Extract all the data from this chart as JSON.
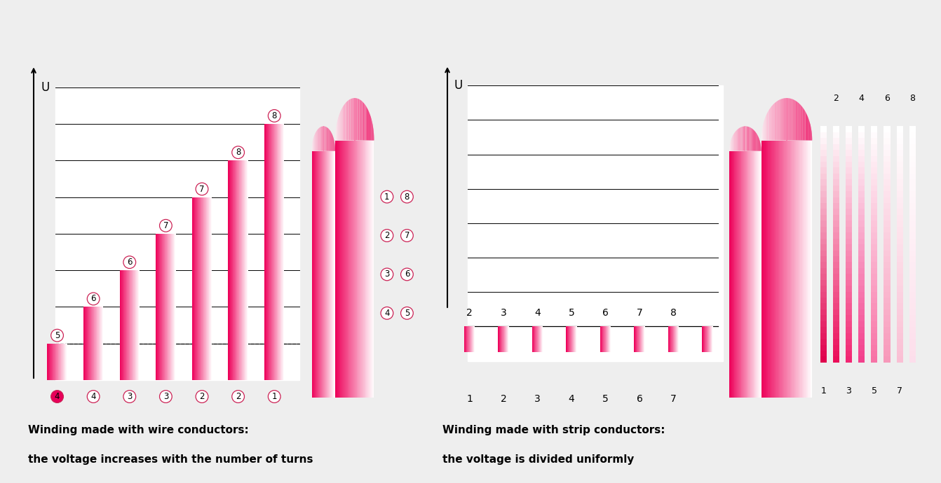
{
  "bg_color": "#eeeeee",
  "left_caption1": "Winding made with wire conductors:",
  "left_caption2": "the voltage increases with the number of turns",
  "right_caption1": "Winding made with strip conductors:",
  "right_caption2": "the voltage is divided uniformly",
  "left_bar_heights": [
    1,
    2,
    3,
    4,
    5,
    6,
    7
  ],
  "left_bottom_labels": [
    "4",
    "4",
    "3",
    "3",
    "2",
    "2",
    "1"
  ],
  "left_top_labels": [
    "5",
    "6",
    "6",
    "7",
    "7",
    "8",
    "8"
  ],
  "right_top_labels": [
    "2",
    "3",
    "4",
    "5",
    "6",
    "7",
    "8"
  ],
  "right_bot_labels": [
    "1",
    "2",
    "3",
    "4",
    "5",
    "6",
    "7"
  ],
  "coil_left_labels": [
    "1",
    "2",
    "3",
    "4"
  ],
  "coil_right_labels": [
    "8",
    "7",
    "6",
    "5"
  ],
  "strip_top_labels": [
    "2",
    "4",
    "6",
    "8"
  ],
  "strip_bot_labels": [
    "1",
    "3",
    "5",
    "7"
  ],
  "num_hlines": 8,
  "pink_dark": [
    0.93,
    0.0,
    0.35
  ],
  "pink_mid": [
    0.97,
    0.5,
    0.65
  ],
  "pink_light": [
    1.0,
    0.88,
    0.93
  ]
}
